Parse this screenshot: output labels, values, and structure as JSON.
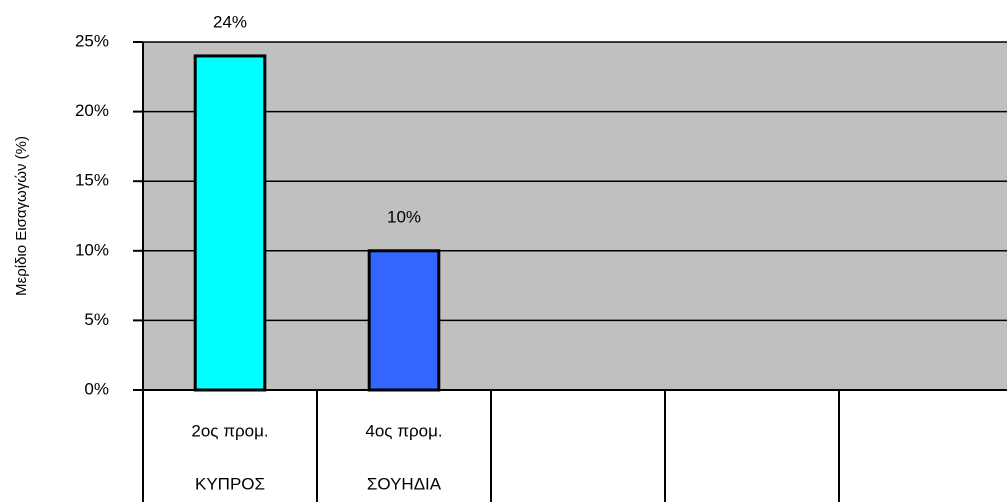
{
  "chart_data": {
    "type": "bar",
    "y_label": "Μερίδιο Εισαγωγών (%)",
    "categories": [
      [
        "2ος προμ.",
        "ΚΥΠΡΟΣ"
      ],
      [
        "4ος προμ.",
        "ΣΟΥΗΔΙΑ"
      ],
      null,
      null,
      null
    ],
    "values": [
      24,
      10,
      null,
      null,
      null
    ],
    "value_labels": [
      "24%",
      "10%",
      null,
      null,
      null
    ],
    "colors": [
      "#00ffff",
      "#3366ff",
      null,
      null,
      null
    ],
    "background": "#c0c0c0",
    "ylim": [
      0,
      25
    ],
    "yticks": [
      {
        "value": 0,
        "label": "0%"
      },
      {
        "value": 5,
        "label": "5%"
      },
      {
        "value": 10,
        "label": "10%"
      },
      {
        "value": 15,
        "label": "15%"
      },
      {
        "value": 20,
        "label": "20%"
      },
      {
        "value": 25,
        "label": "25%"
      }
    ],
    "grid": true
  }
}
